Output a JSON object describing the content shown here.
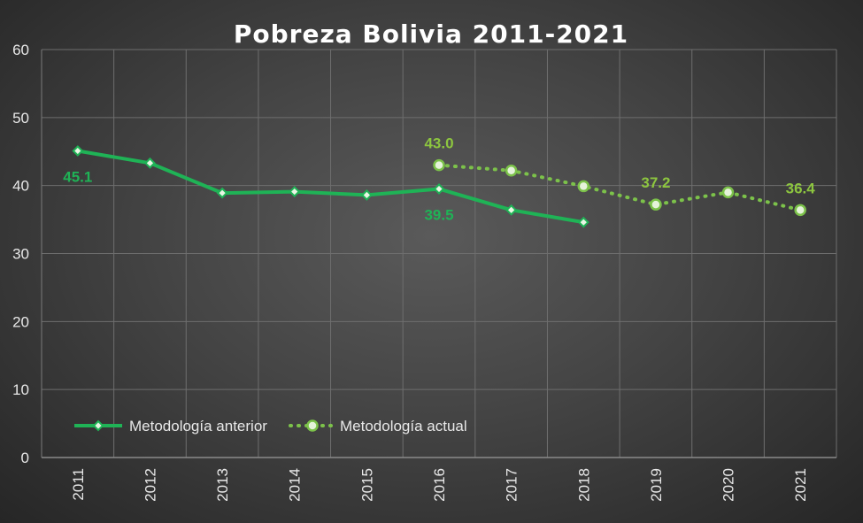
{
  "chart_data": {
    "type": "line",
    "title": "Pobreza Bolivia 2011-2021",
    "xlabel": "",
    "ylabel": "",
    "x": [
      "2011",
      "2012",
      "2013",
      "2014",
      "2015",
      "2016",
      "2017",
      "2018",
      "2019",
      "2020",
      "2021"
    ],
    "ylim": [
      0,
      60
    ],
    "yticks": [
      0,
      10,
      20,
      30,
      40,
      50,
      60
    ],
    "grid": true,
    "legend_position": "bottom-left",
    "series": [
      {
        "name": "Metodología anterior",
        "color": "#1fb356",
        "style": "solid",
        "marker": "diamond",
        "values": [
          45.1,
          43.3,
          38.9,
          39.1,
          38.6,
          39.5,
          36.4,
          34.6,
          null,
          null,
          null
        ]
      },
      {
        "name": "Metodología actual",
        "color": "#7cc24a",
        "style": "dotted",
        "marker": "circle",
        "values": [
          null,
          null,
          null,
          null,
          null,
          43.0,
          42.2,
          39.9,
          37.2,
          39.0,
          36.4
        ]
      }
    ],
    "data_labels": [
      {
        "series": 0,
        "index": 0,
        "text": "45.1",
        "color": "#1fb356",
        "pos": "below"
      },
      {
        "series": 0,
        "index": 5,
        "text": "39.5",
        "color": "#1fb356",
        "pos": "below"
      },
      {
        "series": 1,
        "index": 5,
        "text": "43.0",
        "color": "#8dc63f",
        "pos": "above"
      },
      {
        "series": 1,
        "index": 8,
        "text": "37.2",
        "color": "#8dc63f",
        "pos": "above"
      },
      {
        "series": 1,
        "index": 10,
        "text": "36.4",
        "color": "#8dc63f",
        "pos": "above"
      }
    ]
  }
}
